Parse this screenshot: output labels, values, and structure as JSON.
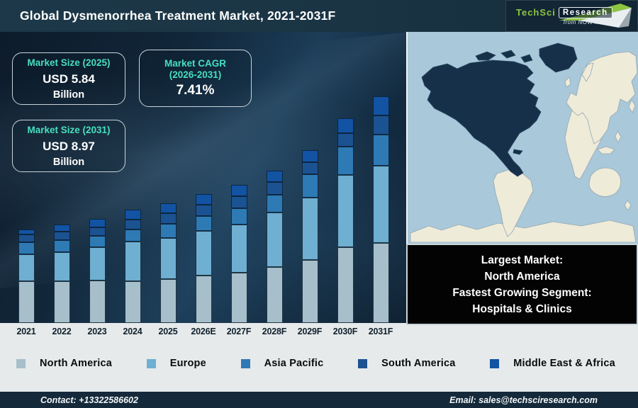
{
  "header": {
    "title": "Global Dysmenorrhea Treatment Market, 2021-2031F",
    "logo": {
      "brand_primary": "TechSci",
      "brand_secondary": "Research",
      "tagline": "from NOW to NEXT",
      "brand_green": "#8dc63f"
    }
  },
  "colors": {
    "accent_teal": "#47dfc1",
    "header_bg": "#1a3444",
    "footer_bg": "#14293a",
    "callout_bg": "#030303",
    "map_ocean": "#a9c8d9",
    "map_land": "#efebd9",
    "map_highlight": "#17304a"
  },
  "info_boxes": [
    {
      "title": "Market Size (2025)",
      "value": "USD 5.84",
      "unit": "Billion"
    },
    {
      "title_line1": "Market CAGR",
      "title_line2": "(2026-2031)",
      "value": "7.41%"
    },
    {
      "title": "Market Size (2031)",
      "value": "USD 8.97",
      "unit": "Billion"
    }
  ],
  "chart_data": {
    "type": "bar",
    "stacked": true,
    "title": "Global Dysmenorrhea Treatment Market, 2021-2031F",
    "categories": [
      "2021",
      "2022",
      "2023",
      "2024",
      "2025",
      "2026E",
      "2027F",
      "2028F",
      "2029F",
      "2030F",
      "2031F"
    ],
    "series": [
      {
        "name": "North America",
        "color": "#a7bfca",
        "values": [
          59,
          59,
          60,
          59,
          62,
          67,
          71,
          79,
          89,
          107,
          113
        ]
      },
      {
        "name": "Europe",
        "color": "#6fafd1",
        "values": [
          38,
          41,
          47,
          56,
          58,
          63,
          68,
          77,
          88,
          102,
          109
        ]
      },
      {
        "name": "Asia Pacific",
        "color": "#2e7ab5",
        "values": [
          17,
          17,
          16,
          17,
          20,
          21,
          23,
          25,
          33,
          40,
          44
        ]
      },
      {
        "name": "South America",
        "color": "#1b5291",
        "values": [
          11,
          12,
          12,
          14,
          15,
          16,
          17,
          18,
          17,
          19,
          27
        ]
      },
      {
        "name": "Middle East & Africa",
        "color": "#1253a4",
        "values": [
          7,
          10,
          12,
          14,
          14,
          15,
          16,
          16,
          17,
          21,
          27
        ]
      }
    ],
    "units": "relative stacked bar height (no value axis shown in figure)",
    "labeled_values": {
      "market_size_2025": "USD 5.84 Billion",
      "market_size_2031": "USD 8.97 Billion",
      "cagr_2026_2031": "7.41%"
    },
    "legend_position": "bottom",
    "grid": false
  },
  "map": {
    "highlighted_region": "North America"
  },
  "callout": {
    "lines": [
      "Largest Market:",
      "North America",
      "Fastest Growing Segment:",
      "Hospitals & Clinics"
    ]
  },
  "footer": {
    "contact": "Contact: +13322586602",
    "email": "Email: sales@techsciresearch.com"
  }
}
